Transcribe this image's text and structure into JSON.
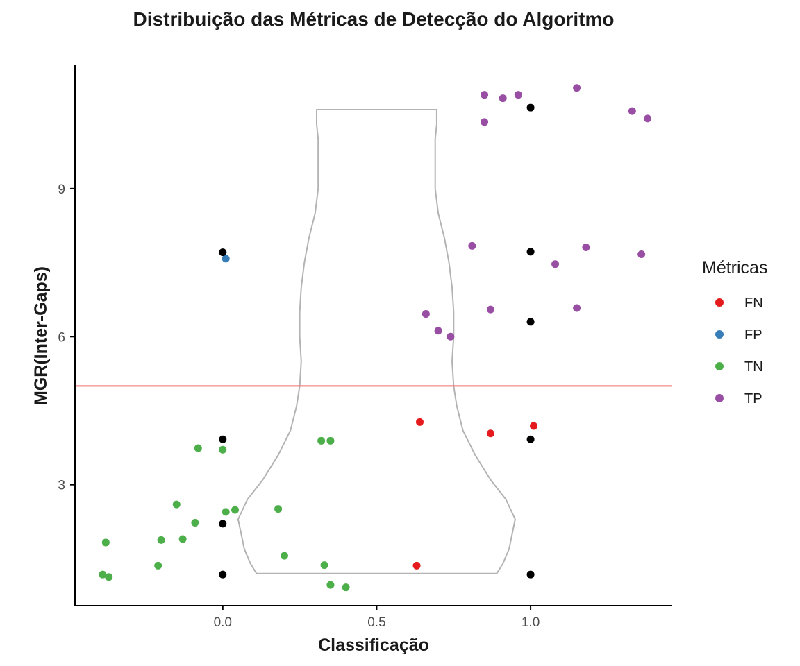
{
  "chart_data": {
    "type": "scatter",
    "title": "Distribuição das Métricas de Detecção do Algoritmo",
    "xlabel": "Classificação",
    "ylabel": "MGR(Inter-Gaps)",
    "xlim": [
      -0.48,
      1.46
    ],
    "ylim": [
      0.55,
      11.5
    ],
    "x_ticks": [
      0.0,
      0.5,
      1.0
    ],
    "x_tick_labels": [
      "0.0",
      "0.5",
      "1.0"
    ],
    "y_ticks": [
      3,
      6,
      9
    ],
    "y_tick_labels": [
      "3",
      "6",
      "9"
    ],
    "grid": false,
    "legend": {
      "title": "Métricas",
      "position": "right",
      "entries": [
        {
          "label": "FN",
          "color": "#e41a1c"
        },
        {
          "label": "FP",
          "color": "#377eb8"
        },
        {
          "label": "TN",
          "color": "#4daf4a"
        },
        {
          "label": "TP",
          "color": "#984ea3"
        }
      ]
    },
    "threshold_line": {
      "y": 5.0,
      "color": "#f07070"
    },
    "violin": {
      "color": "#b3b3b3",
      "center_x": 0.5,
      "profile": [
        {
          "y": 1.2,
          "half_width": 0.39
        },
        {
          "y": 1.4,
          "half_width": 0.41
        },
        {
          "y": 1.7,
          "half_width": 0.43
        },
        {
          "y": 2.0,
          "half_width": 0.44
        },
        {
          "y": 2.3,
          "half_width": 0.45
        },
        {
          "y": 2.7,
          "half_width": 0.42
        },
        {
          "y": 3.1,
          "half_width": 0.37
        },
        {
          "y": 3.6,
          "half_width": 0.32
        },
        {
          "y": 4.1,
          "half_width": 0.28
        },
        {
          "y": 4.6,
          "half_width": 0.26
        },
        {
          "y": 5.0,
          "half_width": 0.25
        },
        {
          "y": 5.5,
          "half_width": 0.245
        },
        {
          "y": 6.0,
          "half_width": 0.25
        },
        {
          "y": 6.5,
          "half_width": 0.25
        },
        {
          "y": 7.0,
          "half_width": 0.245
        },
        {
          "y": 7.5,
          "half_width": 0.235
        },
        {
          "y": 8.0,
          "half_width": 0.22
        },
        {
          "y": 8.5,
          "half_width": 0.2
        },
        {
          "y": 9.0,
          "half_width": 0.19
        },
        {
          "y": 9.5,
          "half_width": 0.19
        },
        {
          "y": 10.0,
          "half_width": 0.19
        },
        {
          "y": 10.3,
          "half_width": 0.195
        },
        {
          "y": 10.6,
          "half_width": 0.195
        }
      ]
    },
    "series": [
      {
        "name": "FN",
        "color": "#e41a1c",
        "points": [
          {
            "x": 0.64,
            "y": 4.27
          },
          {
            "x": 0.87,
            "y": 4.04
          },
          {
            "x": 1.01,
            "y": 4.19
          },
          {
            "x": 0.63,
            "y": 1.36
          }
        ]
      },
      {
        "name": "FP",
        "color": "#377eb8",
        "points": [
          {
            "x": 0.01,
            "y": 7.58
          }
        ]
      },
      {
        "name": "TN",
        "color": "#4daf4a",
        "points": [
          {
            "x": -0.08,
            "y": 3.74
          },
          {
            "x": 0.0,
            "y": 3.71
          },
          {
            "x": 0.32,
            "y": 3.89
          },
          {
            "x": 0.35,
            "y": 3.89
          },
          {
            "x": -0.15,
            "y": 2.6
          },
          {
            "x": 0.01,
            "y": 2.45
          },
          {
            "x": 0.04,
            "y": 2.49
          },
          {
            "x": 0.18,
            "y": 2.51
          },
          {
            "x": -0.09,
            "y": 2.23
          },
          {
            "x": -0.38,
            "y": 1.83
          },
          {
            "x": -0.2,
            "y": 1.88
          },
          {
            "x": -0.13,
            "y": 1.9
          },
          {
            "x": 0.2,
            "y": 1.56
          },
          {
            "x": -0.21,
            "y": 1.36
          },
          {
            "x": 0.33,
            "y": 1.37
          },
          {
            "x": -0.39,
            "y": 1.18
          },
          {
            "x": -0.37,
            "y": 1.13
          },
          {
            "x": 0.35,
            "y": 0.97
          },
          {
            "x": 0.4,
            "y": 0.92
          }
        ]
      },
      {
        "name": "TP",
        "color": "#984ea3",
        "points": [
          {
            "x": 0.85,
            "y": 10.9
          },
          {
            "x": 0.91,
            "y": 10.83
          },
          {
            "x": 0.96,
            "y": 10.9
          },
          {
            "x": 1.15,
            "y": 11.04
          },
          {
            "x": 1.33,
            "y": 10.57
          },
          {
            "x": 1.38,
            "y": 10.42
          },
          {
            "x": 0.85,
            "y": 10.35
          },
          {
            "x": 0.81,
            "y": 7.84
          },
          {
            "x": 1.18,
            "y": 7.81
          },
          {
            "x": 1.08,
            "y": 7.47
          },
          {
            "x": 1.36,
            "y": 7.67
          },
          {
            "x": 0.66,
            "y": 6.46
          },
          {
            "x": 0.87,
            "y": 6.55
          },
          {
            "x": 1.15,
            "y": 6.58
          },
          {
            "x": 0.7,
            "y": 6.12
          },
          {
            "x": 0.74,
            "y": 6.0
          }
        ]
      },
      {
        "name": "",
        "color": "#000000",
        "points": [
          {
            "x": 0.0,
            "y": 7.71
          },
          {
            "x": 0.0,
            "y": 3.92
          },
          {
            "x": 0.0,
            "y": 2.21
          },
          {
            "x": 0.0,
            "y": 1.18
          },
          {
            "x": 1.0,
            "y": 10.64
          },
          {
            "x": 1.0,
            "y": 7.72
          },
          {
            "x": 1.0,
            "y": 6.3
          },
          {
            "x": 1.0,
            "y": 3.92
          },
          {
            "x": 1.0,
            "y": 1.18
          }
        ]
      }
    ]
  }
}
